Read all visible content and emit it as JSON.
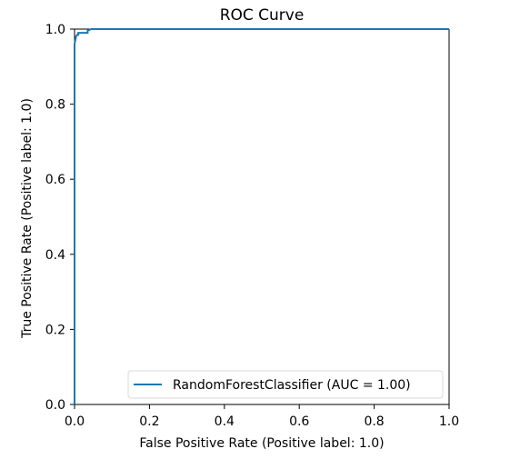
{
  "chart_data": {
    "type": "line",
    "title": "ROC Curve",
    "xlabel": "False Positive Rate (Positive label: 1.0)",
    "ylabel": "True Positive Rate (Positive label: 1.0)",
    "xlim": [
      0,
      1
    ],
    "ylim": [
      0,
      1
    ],
    "x_ticks": [
      0.0,
      0.2,
      0.4,
      0.6,
      0.8,
      1.0
    ],
    "y_ticks": [
      0.0,
      0.2,
      0.4,
      0.6,
      0.8,
      1.0
    ],
    "x_tick_labels": [
      "0.0",
      "0.2",
      "0.4",
      "0.6",
      "0.8",
      "1.0"
    ],
    "y_tick_labels": [
      "0.0",
      "0.2",
      "0.4",
      "0.6",
      "0.8",
      "1.0"
    ],
    "grid": false,
    "legend_position": "lower-right",
    "series": [
      {
        "name": "RandomForestClassifier (AUC = 1.00)",
        "color": "#1f77b4",
        "x": [
          0.0,
          0.0,
          0.002,
          0.004,
          0.007,
          0.01,
          0.01,
          0.035,
          0.035,
          0.045,
          1.0
        ],
        "y": [
          0.0,
          0.96,
          0.97,
          0.98,
          0.985,
          0.985,
          0.99,
          0.99,
          0.996,
          1.0,
          1.0
        ]
      }
    ]
  }
}
